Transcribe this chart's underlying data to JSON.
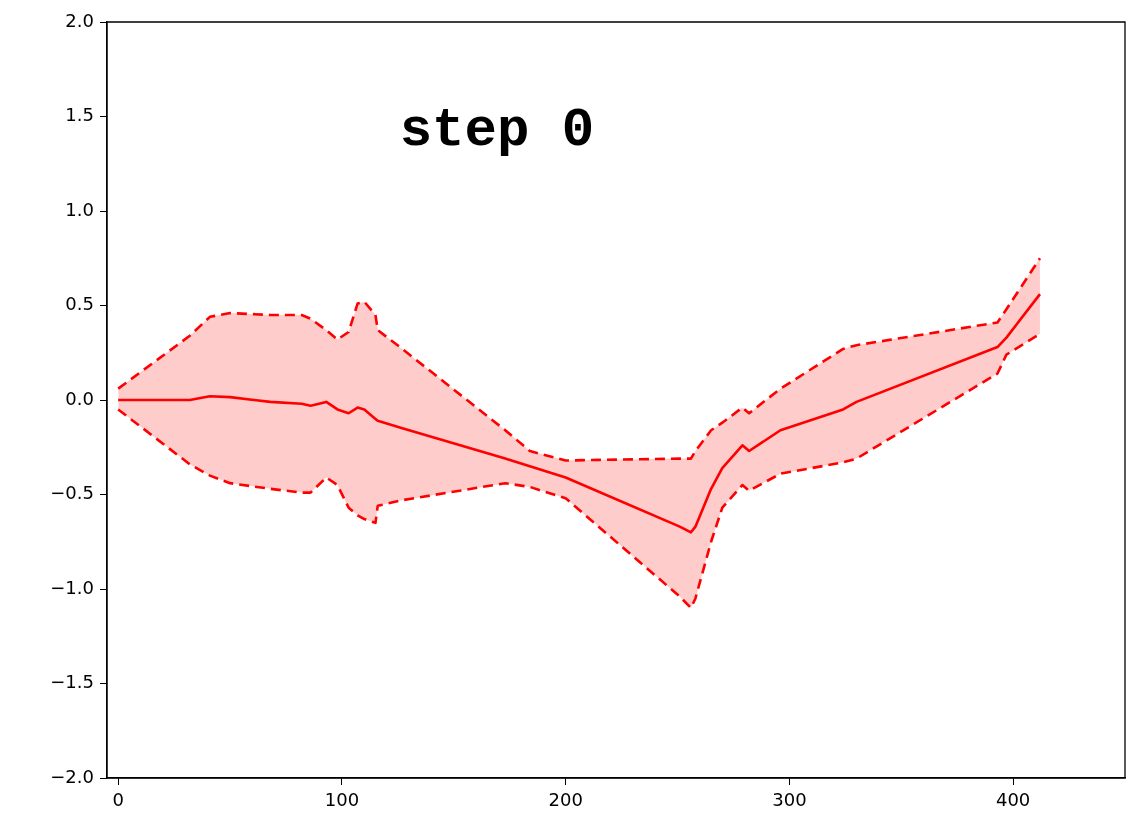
{
  "chart_data": {
    "type": "line",
    "title": "step 0",
    "x": [
      0,
      32,
      41,
      50,
      68,
      82,
      86,
      93,
      98,
      103,
      107,
      110,
      115,
      116,
      127,
      173,
      184,
      200,
      251,
      256,
      258,
      265,
      270,
      279,
      282,
      296,
      324,
      330,
      393,
      397,
      412
    ],
    "series": [
      {
        "color": "#ff0000",
        "values": [
          0,
          0,
          0.02,
          0.015,
          -0.01,
          -0.02,
          -0.03,
          -0.01,
          -0.05,
          -0.07,
          -0.04,
          -0.05,
          -0.1,
          -0.11,
          -0.15,
          -0.31,
          -0.35,
          -0.41,
          -0.67,
          -0.7,
          -0.67,
          -0.47,
          -0.36,
          -0.24,
          -0.27,
          -0.16,
          -0.05,
          -0.01,
          0.28,
          0.33,
          0.56
        ],
        "lower": [
          -0.05,
          -0.34,
          -0.4,
          -0.44,
          -0.47,
          -0.49,
          -0.49,
          -0.41,
          -0.45,
          -0.57,
          -0.61,
          -0.63,
          -0.65,
          -0.56,
          -0.53,
          -0.44,
          -0.46,
          -0.52,
          -1.04,
          -1.1,
          -1.05,
          -0.75,
          -0.57,
          -0.45,
          -0.48,
          -0.39,
          -0.33,
          -0.31,
          0.14,
          0.24,
          0.35
        ],
        "upper": [
          0.06,
          0.34,
          0.44,
          0.46,
          0.45,
          0.45,
          0.43,
          0.37,
          0.32,
          0.36,
          0.51,
          0.52,
          0.45,
          0.37,
          0.27,
          -0.16,
          -0.27,
          -0.32,
          -0.31,
          -0.31,
          -0.27,
          -0.16,
          -0.12,
          -0.04,
          -0.07,
          0.06,
          0.27,
          0.29,
          0.41,
          0.48,
          0.75
        ]
      },
      {
        "color": "#ff0000",
        "line_style": "dashed",
        "values": [
          0.06,
          0.34,
          0.44,
          0.46,
          0.45,
          0.45,
          0.43,
          0.37,
          0.32,
          0.36,
          0.51,
          0.52,
          0.45,
          0.37,
          0.27,
          -0.16,
          -0.27,
          -0.32,
          -0.31,
          -0.31,
          -0.27,
          -0.16,
          -0.12,
          -0.04,
          -0.07,
          0.06,
          0.27,
          0.29,
          0.41,
          0.48,
          0.75
        ]
      },
      {
        "color": "#ff0000",
        "line_style": "dashed",
        "values": [
          -0.05,
          -0.34,
          -0.4,
          -0.44,
          -0.47,
          -0.49,
          -0.49,
          -0.41,
          -0.45,
          -0.57,
          -0.61,
          -0.63,
          -0.65,
          -0.56,
          -0.53,
          -0.44,
          -0.46,
          -0.52,
          -1.04,
          -1.1,
          -1.05,
          -0.75,
          -0.57,
          -0.45,
          -0.48,
          -0.39,
          -0.33,
          -0.31,
          0.14,
          0.24,
          0.35
        ]
      }
    ],
    "xlim": [
      -5,
      450
    ],
    "xticks": [
      0,
      100,
      200,
      300,
      400
    ],
    "ylim": [
      -2,
      2
    ],
    "yticks": [
      {
        "value": -2,
        "label": "−2.0"
      },
      {
        "value": -1.5,
        "label": "−1.5"
      },
      {
        "value": -1,
        "label": "−1.0"
      },
      {
        "value": -0.5,
        "label": "−0.5"
      },
      {
        "value": 0,
        "label": "0.0"
      },
      {
        "value": 0.5,
        "label": "0.5"
      },
      {
        "value": 1,
        "label": "1.0"
      },
      {
        "value": 1.5,
        "label": "1.5"
      },
      {
        "value": 2,
        "label": "2.0"
      }
    ]
  }
}
